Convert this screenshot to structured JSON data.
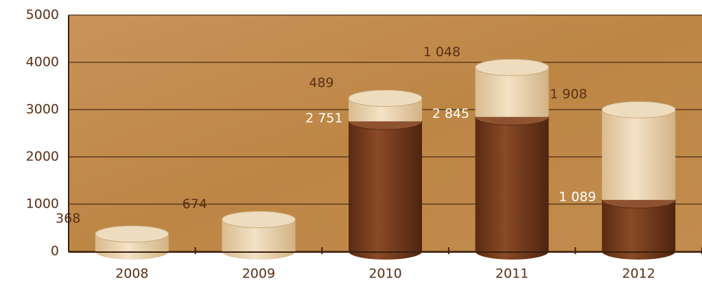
{
  "chart_data": {
    "type": "stacked-cylinder",
    "categories": [
      "2008",
      "2009",
      "2010",
      "2011",
      "2012"
    ],
    "series": [
      {
        "color": "#7a3f1f",
        "values": [
          null,
          null,
          2751,
          2845,
          1089
        ],
        "value_labels": [
          null,
          null,
          "2 751",
          "2 845",
          "1 089"
        ]
      },
      {
        "color": "#e8cfa8",
        "values": [
          368,
          674,
          489,
          1048,
          1908
        ],
        "value_labels": [
          "368",
          "674",
          "489",
          "1 048",
          "1 908"
        ]
      }
    ],
    "ylim": [
      0,
      5000
    ],
    "yticks": [
      0,
      1000,
      2000,
      3000,
      4000,
      5000
    ],
    "grid": true
  }
}
